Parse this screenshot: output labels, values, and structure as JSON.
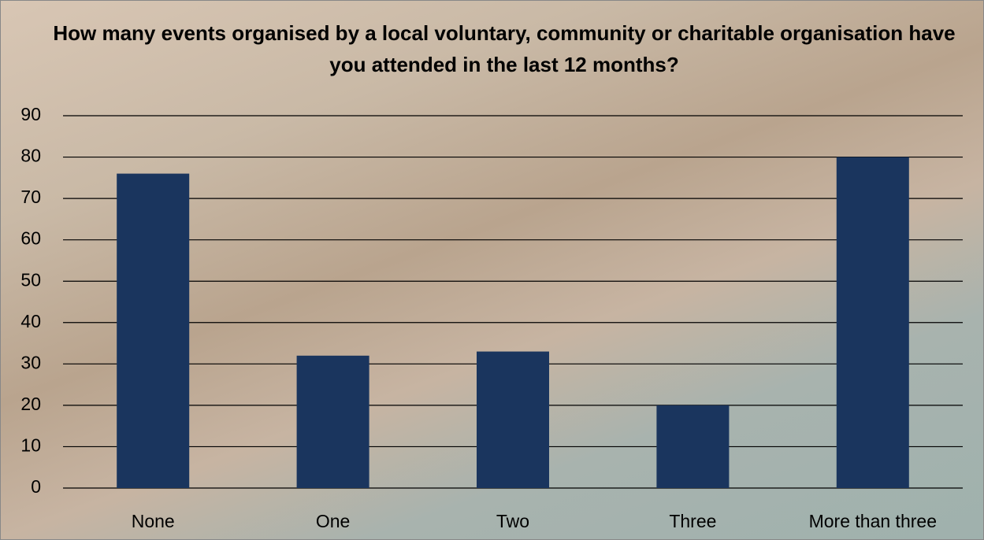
{
  "chart_data": {
    "type": "bar",
    "title": "How many events organised by a local voluntary, community or charitable organisation have you attended in the last 12 months?",
    "categories": [
      "None",
      "One",
      "Two",
      "Three",
      "More than three"
    ],
    "values": [
      76,
      32,
      33,
      20,
      80
    ],
    "color": "#1a355e",
    "ylim": [
      0,
      90
    ],
    "yticks": [
      0,
      10,
      20,
      30,
      40,
      50,
      60,
      70,
      80,
      90
    ],
    "grid": true
  }
}
